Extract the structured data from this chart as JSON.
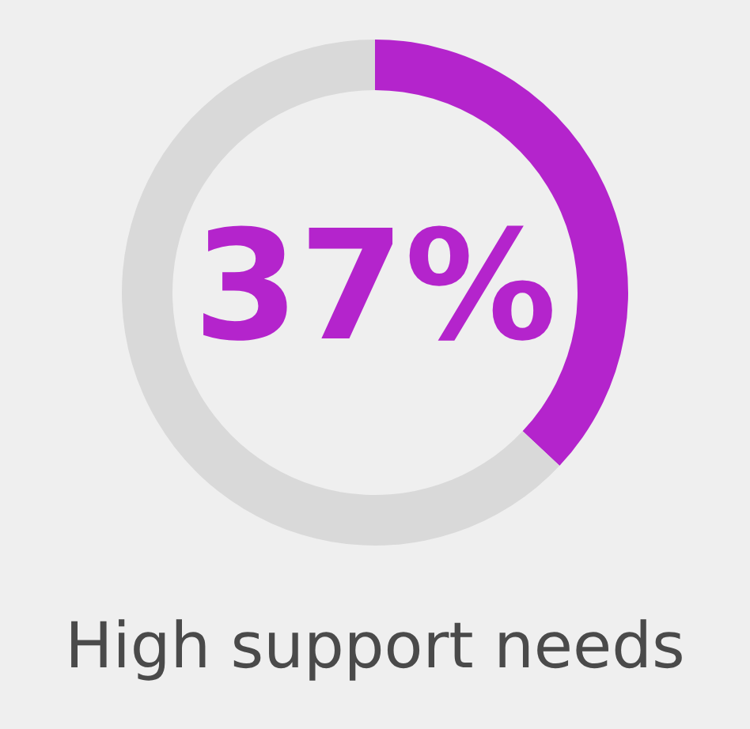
{
  "chart_data": {
    "type": "donut",
    "title": "High support needs",
    "categories": [
      null,
      null
    ],
    "values": [
      37,
      63
    ],
    "colors": [
      "#b424cc",
      "#d9d9d9"
    ],
    "value_labels": [
      "37%",
      null
    ]
  }
}
